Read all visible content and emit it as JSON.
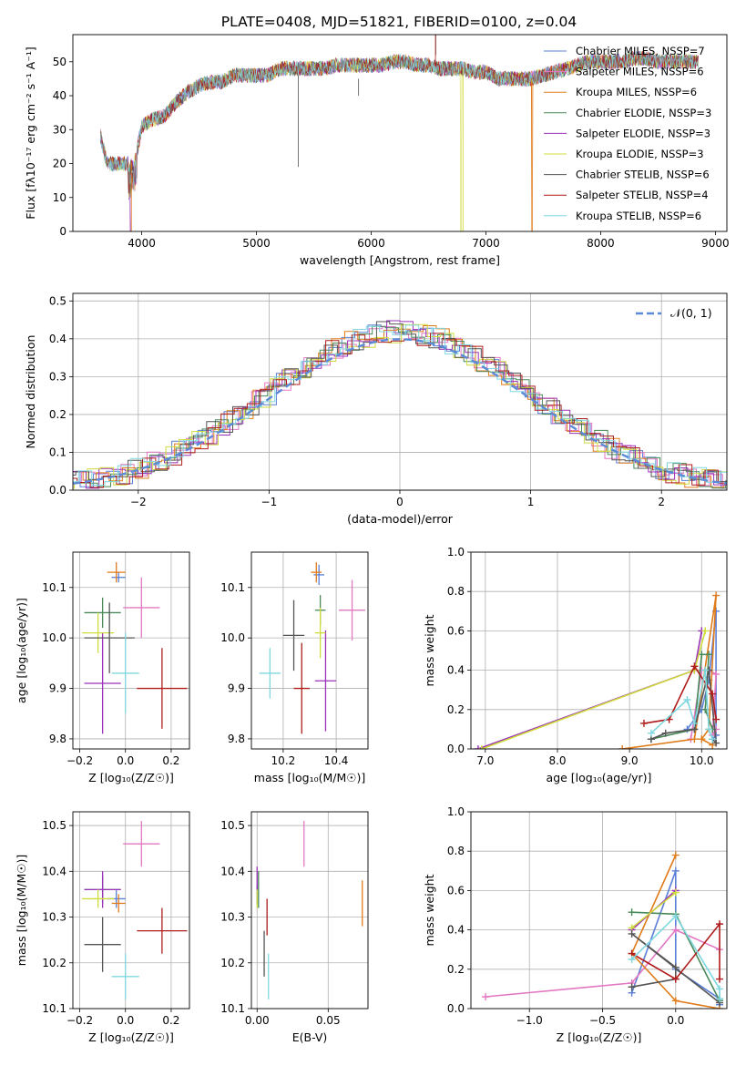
{
  "figure": {
    "title": "PLATE=0408, MJD=51821, FIBERID=0100, z=0.04"
  },
  "chart_data": [
    {
      "id": "spectrum",
      "type": "line",
      "xlabel": "wavelength [Angstrom, rest frame]",
      "ylabel": "Flux [fλ10⁻¹⁷ erg cm⁻² s⁻¹ A⁻¹]",
      "xlim": [
        3400,
        9100
      ],
      "ylim": [
        0,
        58
      ],
      "xticks": [
        4000,
        5000,
        6000,
        7000,
        8000,
        9000
      ],
      "yticks": [
        0,
        10,
        20,
        30,
        40,
        50
      ],
      "grid": false,
      "legend_position": "top-right",
      "x": [
        3640,
        3700,
        3800,
        3900,
        3950,
        4000,
        4100,
        4200,
        4300,
        4400,
        4500,
        4600,
        4700,
        4800,
        4900,
        5000,
        5100,
        5200,
        5300,
        5400,
        5500,
        5600,
        5700,
        5800,
        5900,
        6000,
        6100,
        6200,
        6300,
        6400,
        6500,
        6600,
        6700,
        6800,
        6900,
        7000,
        7100,
        7200,
        7300,
        7400,
        7500,
        7600,
        7700,
        7800,
        7900,
        8000,
        8100,
        8200,
        8300,
        8400,
        8500,
        8600,
        8700,
        8850
      ],
      "values": [
        28,
        20,
        20,
        20,
        22,
        31,
        33,
        34,
        38,
        41,
        43,
        44,
        44,
        46,
        46,
        46,
        46,
        48,
        48,
        48,
        48,
        48,
        49,
        49,
        49,
        49,
        49,
        50,
        50,
        49,
        49,
        48,
        48,
        48,
        47,
        47,
        45,
        45,
        45,
        45,
        46,
        47,
        48,
        49,
        50,
        50,
        50,
        50,
        51,
        51,
        50,
        50,
        50,
        50
      ],
      "series": [
        {
          "name": "Chabrier MILES, N_SSP=7",
          "legend": "Chabrier MILES, NSSP=7",
          "color": "#5b7fd6"
        },
        {
          "name": "Salpeter MILES, N_SSP=6",
          "legend": "Salpeter MILES, NSSP=6",
          "color": "#e377c2"
        },
        {
          "name": "Kroupa MILES, N_SSP=6",
          "legend": "Kroupa MILES, NSSP=6",
          "color": "#e07b1a"
        },
        {
          "name": "Chabrier ELODIE, N_SSP=3",
          "legend": "Chabrier ELODIE, NSSP=3",
          "color": "#4a8a5a"
        },
        {
          "name": "Salpeter ELODIE, N_SSP=3",
          "legend": "Salpeter ELODIE, NSSP=3",
          "color": "#9b30b8"
        },
        {
          "name": "Kroupa ELODIE, N_SSP=3",
          "legend": "Kroupa ELODIE, NSSP=3",
          "color": "#cfdc3c"
        },
        {
          "name": "Chabrier STELIB, N_SSP=6",
          "legend": "Chabrier STELIB, NSSP=6",
          "color": "#555555"
        },
        {
          "name": "Salpeter STELIB, N_SSP=4",
          "legend": "Salpeter STELIB, NSSP=4",
          "color": "#b01c1c"
        },
        {
          "name": "Kroupa STELIB, N_SSP=6",
          "legend": "Kroupa STELIB, NSSP=6",
          "color": "#7fd8e0"
        }
      ]
    },
    {
      "id": "residuals",
      "type": "line",
      "xlabel": "(data-model)/error",
      "ylabel": "Normed distribution",
      "xlim": [
        -2.5,
        2.5
      ],
      "ylim": [
        0,
        0.52
      ],
      "xticks": [
        -2,
        -1,
        0,
        1,
        2
      ],
      "yticks": [
        0.0,
        0.1,
        0.2,
        0.3,
        0.4,
        0.5
      ],
      "grid": true,
      "legend_position": "top-right",
      "legend": "𝒩(0, 1)",
      "reference": {
        "name": "N(0,1)",
        "mean": 0,
        "sigma": 1,
        "color": "#5b8ad6"
      }
    },
    {
      "id": "age-vs-Z",
      "type": "scatter",
      "xlabel": "Z [log₁₀(Z/Z☉)]",
      "ylabel": "age  [log₁₀(age/yr)]",
      "xlim": [
        -0.23,
        0.28
      ],
      "ylim": [
        9.78,
        10.17
      ],
      "xticks": [
        -0.2,
        0.0,
        0.2
      ],
      "xticklabels": [
        "−0.2",
        "0.0",
        "0.2"
      ],
      "yticks": [
        9.8,
        9.9,
        10.0,
        10.1
      ],
      "yticklabels": [
        "9.8",
        "9.9",
        "10.0",
        "10.1"
      ],
      "grid": true,
      "points": [
        {
          "x": -0.03,
          "y": 10.12,
          "xerr": 0.03,
          "yerr": 0.01,
          "series": 0
        },
        {
          "x": 0.07,
          "y": 10.06,
          "xerr": 0.08,
          "yerr": 0.06,
          "series": 1
        },
        {
          "x": -0.04,
          "y": 10.13,
          "xerr": 0.04,
          "yerr": 0.02,
          "series": 2
        },
        {
          "x": -0.1,
          "y": 10.05,
          "xerr": 0.08,
          "yerr": 0.03,
          "series": 3
        },
        {
          "x": -0.1,
          "y": 9.91,
          "xerr": 0.08,
          "yerr": 0.1,
          "series": 4
        },
        {
          "x": -0.12,
          "y": 10.01,
          "xerr": 0.07,
          "yerr": 0.04,
          "series": 5
        },
        {
          "x": -0.07,
          "y": 10.0,
          "xerr": 0.11,
          "yerr": 0.07,
          "series": 6
        },
        {
          "x": 0.16,
          "y": 9.9,
          "xerr": 0.11,
          "yerr": 0.08,
          "series": 7
        },
        {
          "x": 0.0,
          "y": 9.93,
          "xerr": 0.06,
          "yerr": 0.08,
          "series": 8
        }
      ]
    },
    {
      "id": "age-vs-mass",
      "type": "scatter",
      "xlabel": "mass [log₁₀(M/M☉)]",
      "ylabel": "",
      "xlim": [
        10.08,
        10.52
      ],
      "ylim": [
        9.78,
        10.17
      ],
      "xticks": [
        10.2,
        10.4
      ],
      "xticklabels": [
        "10.2",
        "10.4"
      ],
      "yticks": [
        9.8,
        9.9,
        10.0,
        10.1
      ],
      "yticklabels": [
        "9.8",
        "9.9",
        "10.0",
        "10.1"
      ],
      "grid": true,
      "points": [
        {
          "x": 10.335,
          "y": 10.125,
          "xerr": 0.02,
          "yerr": 0.02,
          "series": 0
        },
        {
          "x": 10.46,
          "y": 10.055,
          "xerr": 0.05,
          "yerr": 0.06,
          "series": 1
        },
        {
          "x": 10.325,
          "y": 10.13,
          "xerr": 0.02,
          "yerr": 0.02,
          "series": 2
        },
        {
          "x": 10.34,
          "y": 10.055,
          "xerr": 0.02,
          "yerr": 0.03,
          "series": 3
        },
        {
          "x": 10.36,
          "y": 9.915,
          "xerr": 0.04,
          "yerr": 0.1,
          "series": 4
        },
        {
          "x": 10.34,
          "y": 10.01,
          "xerr": 0.02,
          "yerr": 0.05,
          "series": 5
        },
        {
          "x": 10.24,
          "y": 10.005,
          "xerr": 0.04,
          "yerr": 0.07,
          "series": 6
        },
        {
          "x": 10.27,
          "y": 9.9,
          "xerr": 0.03,
          "yerr": 0.09,
          "series": 7
        },
        {
          "x": 10.15,
          "y": 9.93,
          "xerr": 0.04,
          "yerr": 0.05,
          "series": 8
        }
      ]
    },
    {
      "id": "weight-vs-age",
      "type": "line",
      "xlabel": "age  [log₁₀(age/yr)]",
      "ylabel": "mass weight",
      "xlim": [
        6.8,
        10.35
      ],
      "ylim": [
        0,
        1.0
      ],
      "xticks": [
        7,
        8,
        9,
        10
      ],
      "yticks": [
        0.0,
        0.2,
        0.4,
        0.6,
        0.8,
        1.0
      ],
      "grid": true,
      "series": [
        {
          "series": 0,
          "points": [
            [
              9.8,
              0.1
            ],
            [
              10.0,
              0.2
            ],
            [
              10.1,
              0.35
            ],
            [
              10.2,
              0.7
            ],
            [
              10.2,
              0.07
            ],
            [
              10.15,
              0.05
            ]
          ]
        },
        {
          "series": 1,
          "points": [
            [
              9.85,
              0.05
            ],
            [
              10.0,
              0.4
            ],
            [
              10.1,
              0.4
            ],
            [
              10.2,
              0.38
            ],
            [
              10.15,
              0.07
            ],
            [
              10.2,
              0.1
            ]
          ]
        },
        {
          "series": 2,
          "points": [
            [
              8.9,
              0.0
            ],
            [
              9.9,
              0.05
            ],
            [
              10.2,
              0.78
            ],
            [
              10.1,
              0.1
            ],
            [
              10.0,
              0.05
            ],
            [
              10.15,
              0.02
            ]
          ]
        },
        {
          "series": 3,
          "points": [
            [
              9.3,
              0.05
            ],
            [
              9.9,
              0.1
            ],
            [
              10.0,
              0.48
            ],
            [
              10.1,
              0.48
            ],
            [
              10.05,
              0.2
            ],
            [
              10.15,
              0.1
            ]
          ]
        },
        {
          "series": 4,
          "points": [
            [
              6.9,
              0.0
            ],
            [
              9.9,
              0.4
            ],
            [
              10.0,
              0.6
            ]
          ]
        },
        {
          "series": 5,
          "points": [
            [
              6.95,
              0.0
            ],
            [
              9.9,
              0.4
            ],
            [
              10.05,
              0.6
            ]
          ]
        },
        {
          "series": 6,
          "points": [
            [
              9.3,
              0.05
            ],
            [
              9.5,
              0.08
            ],
            [
              9.9,
              0.1
            ],
            [
              10.1,
              0.4
            ],
            [
              10.2,
              0.03
            ],
            [
              10.15,
              0.05
            ]
          ]
        },
        {
          "series": 7,
          "points": [
            [
              9.2,
              0.13
            ],
            [
              9.55,
              0.15
            ],
            [
              9.9,
              0.42
            ],
            [
              10.15,
              0.28
            ],
            [
              10.2,
              0.15
            ]
          ]
        },
        {
          "series": 8,
          "points": [
            [
              9.3,
              0.08
            ],
            [
              9.8,
              0.25
            ],
            [
              9.9,
              0.13
            ],
            [
              10.05,
              0.4
            ],
            [
              10.1,
              0.1
            ],
            [
              10.15,
              0.05
            ]
          ]
        }
      ]
    },
    {
      "id": "mass-vs-Z",
      "type": "scatter",
      "xlabel": "Z [log₁₀(Z/Z☉)]",
      "ylabel": "mass [log₁₀(M/M☉)]",
      "xlim": [
        -0.23,
        0.28
      ],
      "ylim": [
        10.1,
        10.53
      ],
      "xticks": [
        -0.2,
        0.0,
        0.2
      ],
      "xticklabels": [
        "−0.2",
        "0.0",
        "0.2"
      ],
      "yticks": [
        10.1,
        10.2,
        10.3,
        10.4,
        10.5
      ],
      "yticklabels": [
        "10.1",
        "10.2",
        "10.3",
        "10.4",
        "10.5"
      ],
      "grid": true,
      "points": [
        {
          "x": -0.04,
          "y": 10.34,
          "xerr": 0.04,
          "yerr": 0.02,
          "series": 0
        },
        {
          "x": 0.07,
          "y": 10.46,
          "xerr": 0.08,
          "yerr": 0.05,
          "series": 1
        },
        {
          "x": -0.03,
          "y": 10.33,
          "xerr": 0.03,
          "yerr": 0.02,
          "series": 2
        },
        {
          "x": -0.1,
          "y": 10.36,
          "xerr": 0.08,
          "yerr": 0.03,
          "series": 3
        },
        {
          "x": -0.1,
          "y": 10.36,
          "xerr": 0.08,
          "yerr": 0.04,
          "series": 4
        },
        {
          "x": -0.12,
          "y": 10.34,
          "xerr": 0.07,
          "yerr": 0.02,
          "series": 5
        },
        {
          "x": -0.1,
          "y": 10.24,
          "xerr": 0.08,
          "yerr": 0.06,
          "series": 6
        },
        {
          "x": 0.16,
          "y": 10.27,
          "xerr": 0.11,
          "yerr": 0.05,
          "series": 7
        },
        {
          "x": 0.0,
          "y": 10.17,
          "xerr": 0.06,
          "yerr": 0.05,
          "series": 8
        }
      ]
    },
    {
      "id": "mass-vs-ebv",
      "type": "scatter",
      "xlabel": "E(B-V)",
      "ylabel": "",
      "xlim": [
        -0.004,
        0.078
      ],
      "ylim": [
        10.1,
        10.53
      ],
      "xticks": [
        0.0,
        0.05
      ],
      "xticklabels": [
        "0.00",
        "0.05"
      ],
      "yticks": [
        10.1,
        10.2,
        10.3,
        10.4,
        10.5
      ],
      "yticklabels": [
        "10.1",
        "10.2",
        "10.3",
        "10.4",
        "10.5"
      ],
      "grid": true,
      "points": [
        {
          "x": 0.0,
          "y": 10.35,
          "xerr": 0.0,
          "yerr": 0.02,
          "series": 0
        },
        {
          "x": 0.033,
          "y": 10.46,
          "xerr": 0.0,
          "yerr": 0.05,
          "series": 1
        },
        {
          "x": 0.074,
          "y": 10.33,
          "xerr": 0.0,
          "yerr": 0.05,
          "series": 2
        },
        {
          "x": 0.001,
          "y": 10.36,
          "xerr": 0.0,
          "yerr": 0.04,
          "series": 3
        },
        {
          "x": 0.0,
          "y": 10.37,
          "xerr": 0.0,
          "yerr": 0.04,
          "series": 4
        },
        {
          "x": 0.0,
          "y": 10.34,
          "xerr": 0.0,
          "yerr": 0.02,
          "series": 5
        },
        {
          "x": 0.005,
          "y": 10.22,
          "xerr": 0.0,
          "yerr": 0.05,
          "series": 6
        },
        {
          "x": 0.007,
          "y": 10.3,
          "xerr": 0.0,
          "yerr": 0.04,
          "series": 7
        },
        {
          "x": 0.008,
          "y": 10.17,
          "xerr": 0.0,
          "yerr": 0.05,
          "series": 8
        }
      ]
    },
    {
      "id": "weight-vs-Z",
      "type": "line",
      "xlabel": "Z [log₁₀(Z/Z☉)]",
      "ylabel": "mass weight",
      "xlim": [
        -1.4,
        0.35
      ],
      "ylim": [
        0,
        1.0
      ],
      "xticks": [
        -1.0,
        -0.5,
        0.0
      ],
      "xticklabels": [
        "−1.0",
        "−0.5",
        "0.0"
      ],
      "yticks": [
        0.0,
        0.2,
        0.4,
        0.6,
        0.8,
        1.0
      ],
      "grid": true,
      "series": [
        {
          "series": 0,
          "points": [
            [
              -0.3,
              0.08
            ],
            [
              0.0,
              0.7
            ],
            [
              0.0,
              0.2
            ],
            [
              0.3,
              0.05
            ],
            [
              0.3,
              0.02
            ]
          ]
        },
        {
          "series": 1,
          "points": [
            [
              -1.3,
              0.06
            ],
            [
              -0.3,
              0.13
            ],
            [
              0.0,
              0.4
            ],
            [
              0.3,
              0.3
            ]
          ]
        },
        {
          "series": 2,
          "points": [
            [
              0.0,
              0.78
            ],
            [
              -0.3,
              0.28
            ],
            [
              0.0,
              0.04
            ],
            [
              0.3,
              0.0
            ]
          ]
        },
        {
          "series": 3,
          "points": [
            [
              -0.3,
              0.49
            ],
            [
              0.0,
              0.48
            ],
            [
              0.3,
              0.04
            ]
          ]
        },
        {
          "series": 4,
          "points": [
            [
              -0.3,
              0.4
            ],
            [
              0.0,
              0.6
            ]
          ]
        },
        {
          "series": 5,
          "points": [
            [
              -0.3,
              0.41
            ],
            [
              0.0,
              0.59
            ]
          ]
        },
        {
          "series": 6,
          "points": [
            [
              -0.3,
              0.11
            ],
            [
              0.0,
              0.15
            ],
            [
              0.0,
              0.21
            ],
            [
              -0.3,
              0.38
            ],
            [
              0.3,
              0.03
            ]
          ]
        },
        {
          "series": 7,
          "points": [
            [
              -0.3,
              0.28
            ],
            [
              0.0,
              0.15
            ],
            [
              0.3,
              0.43
            ],
            [
              0.3,
              0.15
            ]
          ]
        },
        {
          "series": 8,
          "points": [
            [
              -0.3,
              0.25
            ],
            [
              0.0,
              0.47
            ],
            [
              0.3,
              0.1
            ],
            [
              0.3,
              0.05
            ]
          ]
        }
      ]
    }
  ]
}
